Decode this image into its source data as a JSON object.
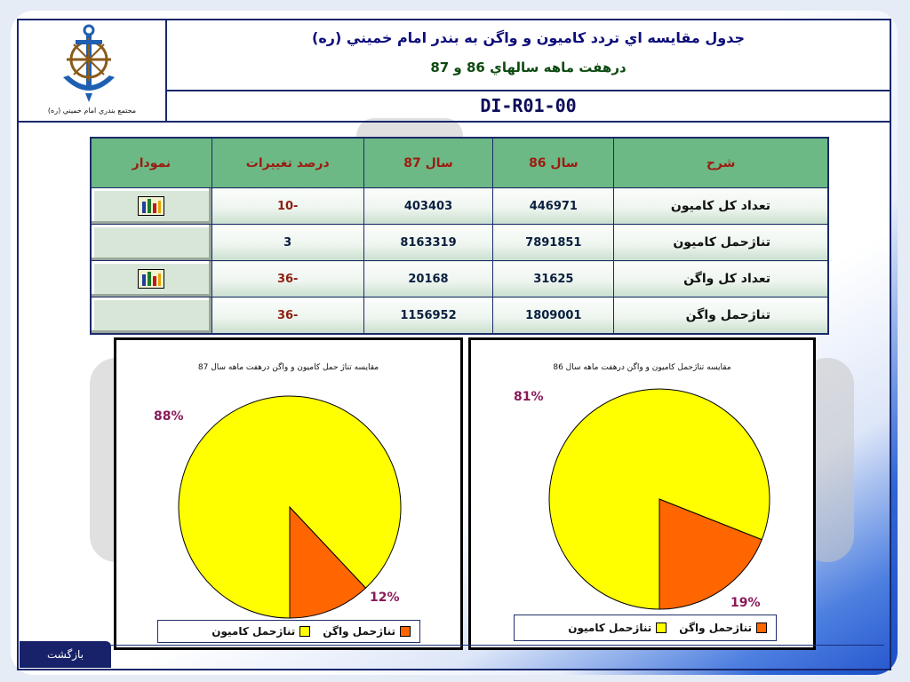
{
  "header": {
    "title_line1": "جدول مقايسه اي تردد كاميون و واگن به بندر امام خميني (ره)",
    "title_line2": "درهفت ماهه سالهاي 86 و 87",
    "code": "DI-R01-00",
    "org_caption": "مجتمع بندري امام خميني (ره)"
  },
  "table": {
    "headers": [
      "شرح",
      "سال 86",
      "سال 87",
      "درصد تغييرات",
      "نمودار"
    ],
    "rows": [
      {
        "desc": "تعداد كل كاميون",
        "y86": "446971",
        "y87": "403403",
        "pct": "-10",
        "has_chart": true
      },
      {
        "desc": "تناژحمل كاميون",
        "y86": "7891851",
        "y87": "8163319",
        "pct": "3",
        "has_chart": false
      },
      {
        "desc": "تعداد كل واگن",
        "y86": "31625",
        "y87": "20168",
        "pct": "-36",
        "has_chart": true
      },
      {
        "desc": "تناژحمل واگن",
        "y86": "1809001",
        "y87": "1156952",
        "pct": "-36",
        "has_chart": false
      }
    ]
  },
  "chart_data": [
    {
      "type": "pie",
      "title": "مقايسه تناژ حمل كاميون و واگن درهفت ماهه سال 87",
      "categories": [
        "تناژحمل كاميون",
        "تناژحمل واگن"
      ],
      "values": [
        88,
        12
      ],
      "data_labels": [
        "88%",
        "12%"
      ],
      "colors": [
        "#ffff00",
        "#ff6600"
      ],
      "legend_placement": "bottom"
    },
    {
      "type": "pie",
      "title": "مقايسه تناژحمل كاميون و واگن درهفت ماهه سال 86",
      "categories": [
        "تناژحمل كاميون",
        "تناژحمل واگن"
      ],
      "values": [
        81,
        19
      ],
      "data_labels": [
        "81%",
        "19%"
      ],
      "colors": [
        "#ffff00",
        "#ff6600"
      ],
      "legend_placement": "bottom"
    }
  ],
  "nav": {
    "back_label": "بازگشت"
  },
  "colors": {
    "frame": "#18276b",
    "table_header": "#6cb985",
    "header_text": "#9c1b12"
  }
}
